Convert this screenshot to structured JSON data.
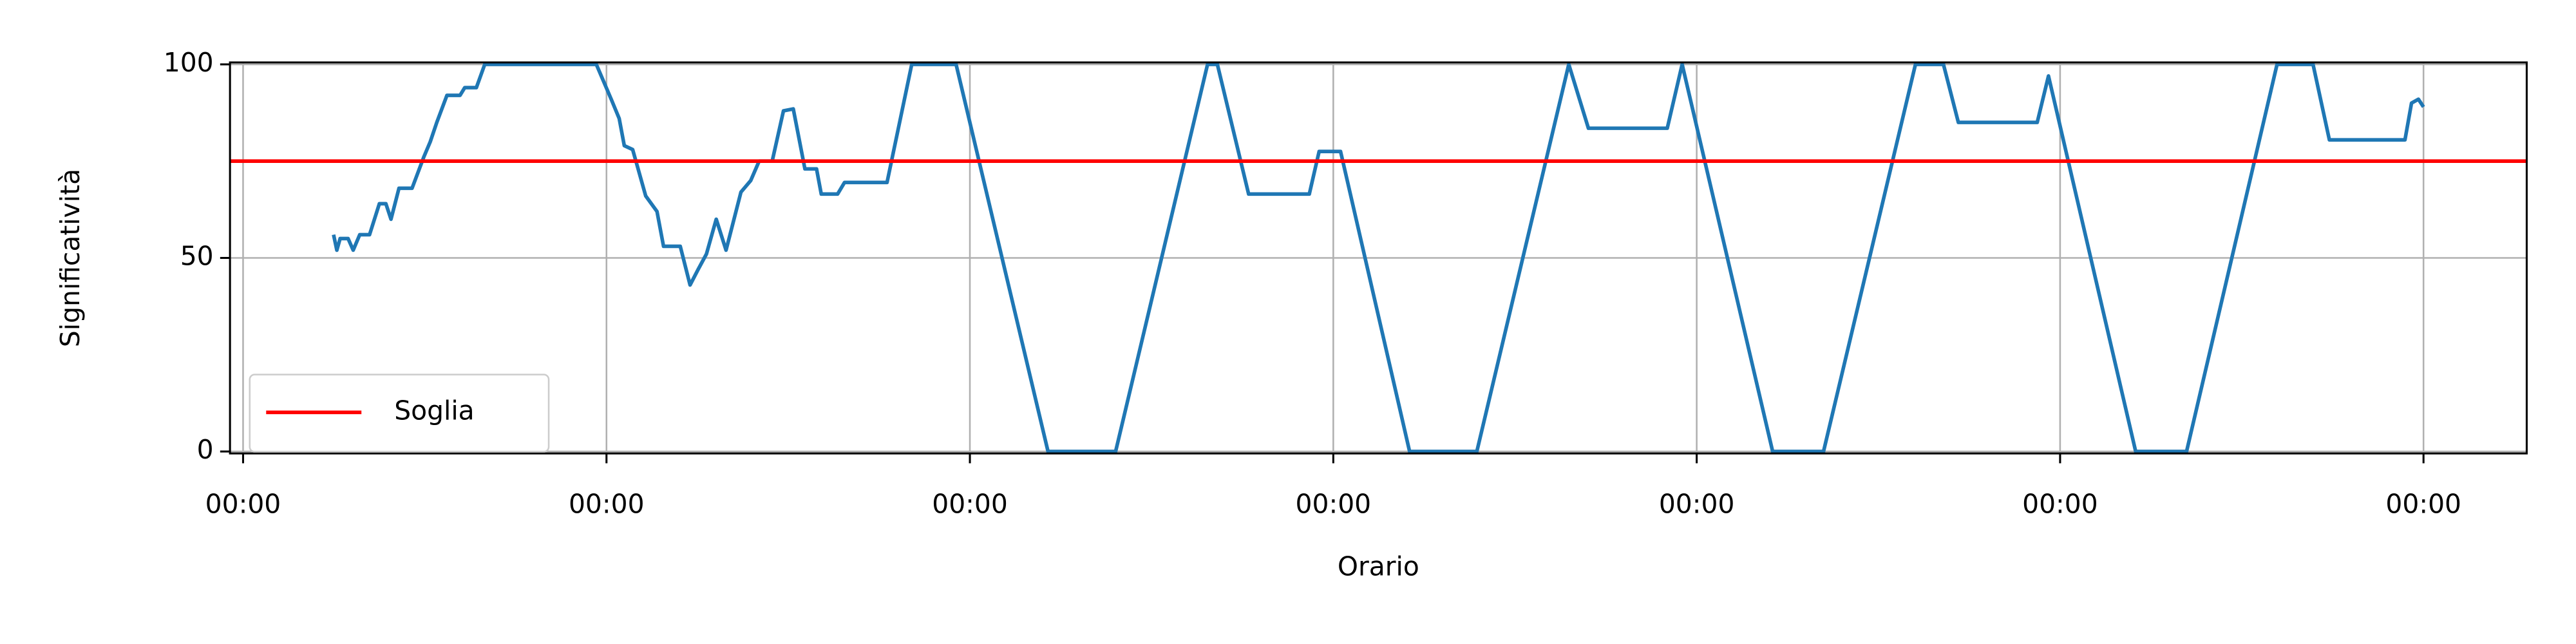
{
  "chart_data": {
    "type": "line",
    "x_label": "Orario",
    "y_label": "Significatività",
    "x": [
      0.249,
      0.258,
      0.267,
      0.289,
      0.303,
      0.321,
      0.348,
      0.375,
      0.393,
      0.407,
      0.429,
      0.465,
      0.497,
      0.515,
      0.533,
      0.561,
      0.597,
      0.61,
      0.642,
      0.665,
      0.972,
      1.013,
      1.035,
      1.049,
      1.072,
      1.108,
      1.139,
      1.157,
      1.203,
      1.23,
      1.252,
      1.275,
      1.302,
      1.329,
      1.37,
      1.397,
      1.42,
      1.456,
      1.487,
      1.514,
      1.546,
      1.578,
      1.591,
      1.636,
      1.655,
      1.772,
      1.84,
      1.962,
      2.215,
      2.401,
      2.654,
      2.681,
      2.767,
      2.934,
      2.961,
      3.02,
      3.21,
      3.395,
      3.648,
      3.702,
      3.919,
      3.96,
      4.209,
      4.349,
      4.602,
      4.679,
      4.72,
      4.937,
      4.968,
      5.208,
      5.348,
      5.597,
      5.696,
      5.741,
      5.949,
      5.967,
      5.986,
      6.0
    ],
    "series": [
      {
        "color": "#1f77b4",
        "values": [
          56,
          52,
          55,
          55,
          52,
          56,
          56,
          64,
          64,
          60,
          68,
          68,
          76,
          80,
          85,
          92,
          92,
          94,
          94,
          100,
          100,
          91,
          86,
          79,
          78,
          66,
          62,
          53,
          53,
          43,
          47,
          51,
          60,
          52,
          67,
          70,
          75,
          75,
          88,
          88.5,
          73,
          73,
          66.5,
          66.5,
          69.5,
          69.5,
          100,
          100,
          0,
          0,
          100,
          100,
          66.5,
          66.5,
          77.5,
          77.5,
          0,
          0,
          100,
          83.5,
          83.5,
          100,
          0,
          0,
          100,
          100,
          85,
          85,
          97,
          0,
          0,
          100,
          100,
          80.5,
          80.5,
          90,
          91,
          89
        ]
      }
    ],
    "hlines": [
      {
        "name": "Soglia",
        "value": 75,
        "color": "#ff0000"
      }
    ],
    "xlim": [
      -0.036,
      6.284
    ],
    "ylim": [
      -0.5,
      100.5
    ],
    "xticks": [
      {
        "value": 0,
        "label": "00:00"
      },
      {
        "value": 1,
        "label": "00:00"
      },
      {
        "value": 2,
        "label": "00:00"
      },
      {
        "value": 3,
        "label": "00:00"
      },
      {
        "value": 4,
        "label": "00:00"
      },
      {
        "value": 5,
        "label": "00:00"
      },
      {
        "value": 6,
        "label": "00:00"
      }
    ],
    "yticks": [
      0,
      50,
      100
    ],
    "grid": true,
    "legend": "lower left"
  }
}
